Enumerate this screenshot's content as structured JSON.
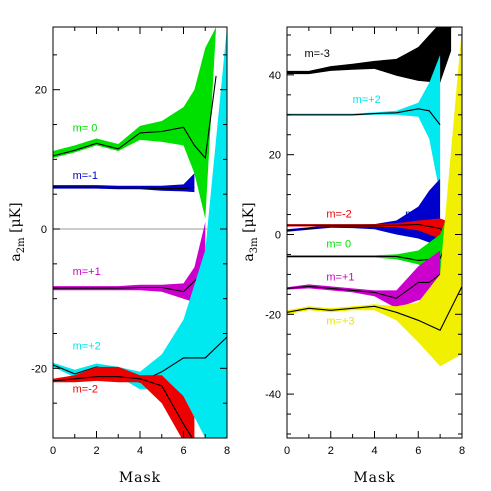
{
  "chart_data": [
    {
      "type": "area",
      "xlabel": "Mask",
      "ylabel": "a_2m [μK]",
      "ylabel_main": "a",
      "ylabel_sub": "2m",
      "ylabel_unit": " [μK]",
      "xlim": [
        0,
        8
      ],
      "ylim": [
        -30,
        29
      ],
      "xticks": [
        0,
        2,
        4,
        6,
        8
      ],
      "yticks": [
        -20,
        0,
        20
      ],
      "zero_line": true,
      "series": [
        {
          "name": "m= 0",
          "color": "#00e000",
          "label_at": [
            0.9,
            14.0
          ],
          "x": [
            0,
            1,
            2,
            3,
            4,
            5,
            6,
            6.5,
            7,
            7.5
          ],
          "y": [
            10.5,
            11.3,
            12.3,
            11.5,
            13.8,
            14.0,
            14.6,
            12.0,
            10.2,
            22.0
          ],
          "upper": [
            11.2,
            12.0,
            13.0,
            12.2,
            14.8,
            15.5,
            17.5,
            20.0,
            26.0,
            29.0
          ],
          "lower": [
            10.2,
            11.0,
            12.0,
            11.2,
            12.8,
            12.5,
            12.0,
            8.0,
            1.5,
            29.0
          ]
        },
        {
          "name": "m=-1",
          "color": "#0000cc",
          "label_at": [
            0.9,
            7.2
          ],
          "x": [
            0,
            1,
            2,
            3,
            4,
            5,
            6,
            6.5
          ],
          "y": [
            6.0,
            6.0,
            6.0,
            5.9,
            5.9,
            5.8,
            5.8,
            6.0
          ],
          "upper": [
            6.3,
            6.3,
            6.3,
            6.2,
            6.2,
            6.2,
            6.4,
            8.0
          ],
          "lower": [
            5.8,
            5.8,
            5.8,
            5.7,
            5.7,
            5.5,
            5.4,
            5.3
          ]
        },
        {
          "name": "m=+1",
          "color": "#cc00cc",
          "label_at": [
            0.9,
            -6.6
          ],
          "x": [
            0,
            1,
            2,
            3,
            4,
            5,
            6,
            6.5,
            7
          ],
          "y": [
            -8.5,
            -8.5,
            -8.5,
            -8.5,
            -8.4,
            -8.4,
            -9.0,
            -7.5,
            -6.0
          ],
          "upper": [
            -8.2,
            -8.2,
            -8.2,
            -8.2,
            -8.0,
            -8.0,
            -7.8,
            -5.5,
            1.0
          ],
          "lower": [
            -8.8,
            -8.8,
            -8.8,
            -8.8,
            -8.8,
            -9.0,
            -10.0,
            -10.5,
            -12.0
          ]
        },
        {
          "name": "m=+2",
          "color": "#00e8f0",
          "label_at": [
            0.9,
            -17.3
          ],
          "x": [
            0,
            1,
            2,
            3,
            4,
            5,
            6,
            7,
            8
          ],
          "y": [
            -19.5,
            -20.8,
            -19.8,
            -20.5,
            -22.0,
            -20.5,
            -18.5,
            -18.5,
            -15.5
          ],
          "upper": [
            -19.2,
            -20.2,
            -19.3,
            -19.8,
            -20.5,
            -18.0,
            -13.0,
            -3.0,
            29.0
          ],
          "lower": [
            -19.8,
            -21.3,
            -20.3,
            -21.2,
            -23.0,
            -23.0,
            -24.0,
            -30.0,
            -30.0
          ]
        },
        {
          "name": "m=-2",
          "color": "#ee0000",
          "label_at": [
            0.9,
            -23.5
          ],
          "x": [
            0,
            1,
            2,
            3,
            4,
            5,
            6,
            6.5
          ],
          "y": [
            -21.8,
            -21.5,
            -21.2,
            -21.2,
            -21.5,
            -22.5,
            -28.0,
            -30.5
          ],
          "upper": [
            -21.5,
            -21.0,
            -19.8,
            -19.8,
            -21.0,
            -21.0,
            -24.0,
            -27.0
          ],
          "lower": [
            -22.0,
            -22.0,
            -21.8,
            -22.0,
            -22.0,
            -25.0,
            -30.5,
            -30.5
          ]
        }
      ]
    },
    {
      "type": "area",
      "xlabel": "Mask",
      "ylabel": "a_3m [μK]",
      "ylabel_main": "a",
      "ylabel_sub": "3m",
      "ylabel_unit": " [μK]",
      "xlim": [
        0,
        8
      ],
      "ylim": [
        -51,
        52
      ],
      "xticks": [
        0,
        2,
        4,
        6,
        8
      ],
      "yticks": [
        -40,
        -20,
        0,
        20,
        40
      ],
      "zero_line": false,
      "series": [
        {
          "name": "m=-3",
          "color": "#000000",
          "label_at": [
            0.8,
            44.5
          ],
          "x": [
            0,
            1,
            2,
            3,
            4,
            5,
            6,
            7,
            7.5
          ],
          "y": [
            40.5,
            40.5,
            41.5,
            42.0,
            42.5,
            41.5,
            43.0,
            45.5,
            52.0
          ],
          "upper": [
            41.0,
            41.0,
            42.2,
            42.8,
            43.5,
            44.0,
            47.0,
            53.0,
            53.0
          ],
          "lower": [
            40.2,
            40.2,
            41.0,
            41.3,
            41.5,
            39.8,
            38.5,
            38.0,
            46.0
          ]
        },
        {
          "name": "m=+2",
          "color": "#00e8f0",
          "label_at": [
            3.0,
            33.0
          ],
          "x": [
            0,
            1,
            2,
            3,
            4,
            5,
            6,
            6.5,
            7
          ],
          "y": [
            30.0,
            30.0,
            30.0,
            30.0,
            30.3,
            30.5,
            31.5,
            31.0,
            27.5
          ],
          "upper": [
            30.3,
            30.3,
            30.3,
            30.3,
            30.6,
            31.0,
            33.0,
            38.0,
            45.0
          ],
          "lower": [
            29.8,
            29.8,
            29.8,
            29.8,
            30.0,
            30.0,
            29.5,
            24.0,
            10.0
          ]
        },
        {
          "name": "m=-1",
          "color": "#0000cc",
          "label_at": [
            5.4,
            4.3
          ],
          "x": [
            0,
            1,
            2,
            3,
            4,
            5,
            6,
            6.5,
            7
          ],
          "y": [
            1.0,
            1.5,
            2.0,
            2.0,
            2.0,
            1.8,
            2.5,
            2.5,
            0.0
          ],
          "upper": [
            1.3,
            1.8,
            2.3,
            2.4,
            2.6,
            3.5,
            7.0,
            11.0,
            14.0
          ],
          "lower": [
            0.7,
            1.2,
            1.7,
            1.6,
            1.3,
            0.0,
            -1.0,
            -2.0,
            -5.0
          ]
        },
        {
          "name": "m=-2",
          "color": "#ee0000",
          "label_at": [
            1.8,
            4.3
          ],
          "x": [
            0,
            1,
            2,
            3,
            4,
            5,
            6,
            7,
            7.5
          ],
          "y": [
            2.3,
            2.3,
            2.3,
            2.3,
            2.3,
            2.3,
            2.5,
            1.5,
            -2.0
          ],
          "upper": [
            2.6,
            2.6,
            2.6,
            2.6,
            2.6,
            2.8,
            3.5,
            4.0,
            3.0
          ],
          "lower": [
            2.0,
            2.0,
            2.0,
            2.0,
            2.0,
            1.8,
            1.0,
            -1.0,
            -5.0
          ]
        },
        {
          "name": "m= 0",
          "color": "#00e000",
          "label_at": [
            1.8,
            -3.3
          ],
          "x": [
            0,
            1,
            2,
            3,
            4,
            5,
            6,
            7,
            8
          ],
          "y": [
            -5.5,
            -5.5,
            -5.5,
            -5.5,
            -5.5,
            -5.5,
            -6.5,
            -6.0,
            7.0
          ],
          "upper": [
            -5.2,
            -5.2,
            -5.2,
            -5.2,
            -5.2,
            -5.0,
            -4.0,
            0.0,
            14.0
          ],
          "lower": [
            -5.8,
            -5.8,
            -5.8,
            -5.8,
            -5.8,
            -6.2,
            -7.5,
            -11.0,
            -15.0
          ]
        },
        {
          "name": "m=+1",
          "color": "#cc00cc",
          "label_at": [
            1.8,
            -11.5
          ],
          "x": [
            0,
            1,
            2,
            3,
            4,
            5,
            6,
            6.5,
            7
          ],
          "y": [
            -13.5,
            -13.0,
            -13.5,
            -14.0,
            -14.5,
            -16.0,
            -12.0,
            -12.0,
            -10.0
          ],
          "upper": [
            -13.2,
            -12.5,
            -13.0,
            -13.5,
            -14.0,
            -14.0,
            -8.0,
            -6.0,
            -4.0
          ],
          "lower": [
            -13.8,
            -13.5,
            -14.0,
            -14.5,
            -15.5,
            -18.5,
            -16.5,
            -16.0,
            -16.0
          ]
        },
        {
          "name": "m=+3",
          "color": "#f0f000",
          "label_at": [
            1.8,
            -22.5
          ],
          "x": [
            0,
            1,
            2,
            3,
            4,
            5,
            6,
            7,
            8
          ],
          "y": [
            -19.5,
            -18.5,
            -19.0,
            -18.5,
            -18.0,
            -19.5,
            -21.5,
            -24.0,
            -13.0
          ],
          "upper": [
            -19.0,
            -18.0,
            -18.5,
            -18.0,
            -17.5,
            -18.0,
            -17.0,
            -10.0,
            52.0
          ],
          "lower": [
            -20.0,
            -19.0,
            -19.5,
            -19.0,
            -19.0,
            -21.5,
            -27.0,
            -33.0,
            -30.0
          ]
        }
      ]
    }
  ]
}
